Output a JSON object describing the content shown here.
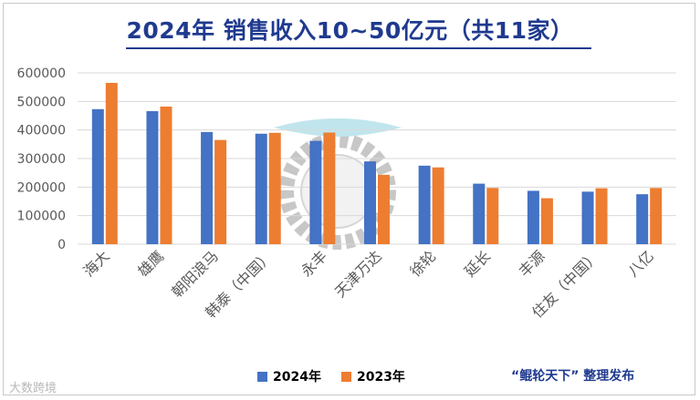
{
  "title": "2024年 销售收入10~50亿元（共11家）",
  "publisher": "“鲲轮天下” 整理发布",
  "source_mark": "大数跨境",
  "colors": {
    "s2024": "#4472c4",
    "s2023": "#ed7d31",
    "title": "#1f3a8f",
    "grid": "#d9d9d9"
  },
  "chart_data": {
    "type": "bar",
    "title": "2024年 销售收入10~50亿元（共11家）",
    "categories": [
      "海大",
      "雄鹰",
      "朝阳浪马",
      "韩泰（中国）",
      "永丰",
      "天津万达",
      "徐轮",
      "延长",
      "丰源",
      "住友（中国）",
      "八亿"
    ],
    "series": [
      {
        "name": "2024年",
        "values": [
          473000,
          466000,
          393000,
          387000,
          362000,
          290000,
          275000,
          212000,
          187000,
          184000,
          175000
        ]
      },
      {
        "name": "2023年",
        "values": [
          565000,
          482000,
          365000,
          390000,
          391000,
          243000,
          269000,
          197000,
          161000,
          196000,
          197000
        ]
      }
    ],
    "yticks": [
      0,
      100000,
      200000,
      300000,
      400000,
      500000,
      600000
    ],
    "ylim": [
      0,
      600000
    ],
    "grid": true,
    "legend": "bottom"
  }
}
